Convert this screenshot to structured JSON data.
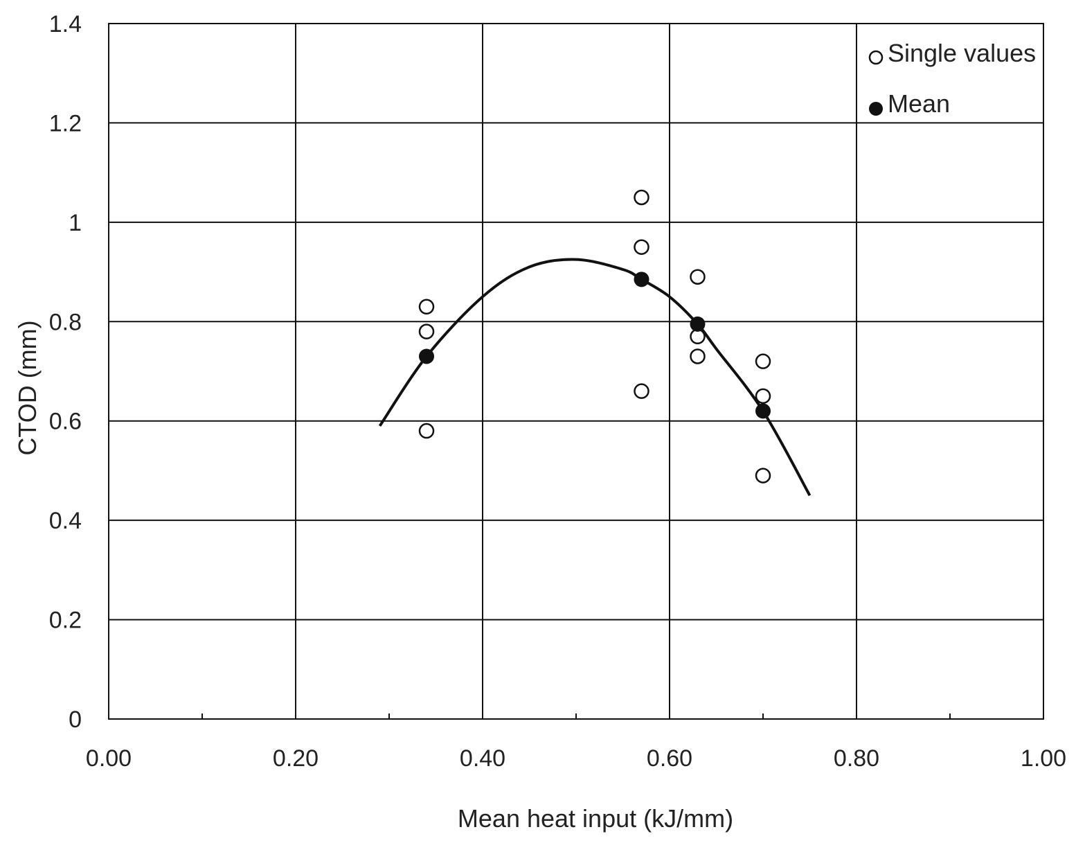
{
  "chart_data": {
    "type": "scatter",
    "title": "",
    "xlabel": "Mean heat input (kJ/mm)",
    "ylabel": "CTOD (mm)",
    "xlim": [
      0.0,
      1.0
    ],
    "ylim": [
      0.0,
      1.4
    ],
    "x_ticks": [
      0.0,
      0.2,
      0.4,
      0.6,
      0.8,
      1.0
    ],
    "x_tick_labels": [
      "0.00",
      "0.20",
      "0.40",
      "0.60",
      "0.80",
      "1.00"
    ],
    "x_minor_ticks": [
      0.1,
      0.3,
      0.5,
      0.7,
      0.9
    ],
    "y_ticks": [
      0.0,
      0.2,
      0.4,
      0.6,
      0.8,
      1.0,
      1.2,
      1.4
    ],
    "y_tick_labels": [
      "0",
      "0.2",
      "0.4",
      "0.6",
      "0.8",
      "1",
      "1.2",
      "1.4"
    ],
    "grid": true,
    "legend_position": "top-right",
    "series": [
      {
        "name": "Single values",
        "marker": "open-circle",
        "points": [
          [
            0.34,
            0.83
          ],
          [
            0.34,
            0.78
          ],
          [
            0.34,
            0.58
          ],
          [
            0.57,
            1.05
          ],
          [
            0.57,
            0.95
          ],
          [
            0.57,
            0.66
          ],
          [
            0.63,
            0.89
          ],
          [
            0.63,
            0.77
          ],
          [
            0.63,
            0.73
          ],
          [
            0.7,
            0.72
          ],
          [
            0.7,
            0.65
          ],
          [
            0.7,
            0.49
          ]
        ]
      },
      {
        "name": "Mean",
        "marker": "filled-circle",
        "points": [
          [
            0.34,
            0.73
          ],
          [
            0.57,
            0.885
          ],
          [
            0.63,
            0.795
          ],
          [
            0.7,
            0.62
          ]
        ]
      }
    ],
    "trendline": {
      "type": "polynomial-2",
      "x_range": [
        0.29,
        0.75
      ],
      "points": [
        [
          0.29,
          0.59
        ],
        [
          0.34,
          0.73
        ],
        [
          0.4,
          0.85
        ],
        [
          0.45,
          0.91
        ],
        [
          0.5,
          0.925
        ],
        [
          0.55,
          0.905
        ],
        [
          0.57,
          0.885
        ],
        [
          0.6,
          0.85
        ],
        [
          0.63,
          0.795
        ],
        [
          0.65,
          0.745
        ],
        [
          0.7,
          0.62
        ],
        [
          0.75,
          0.45
        ]
      ]
    }
  }
}
